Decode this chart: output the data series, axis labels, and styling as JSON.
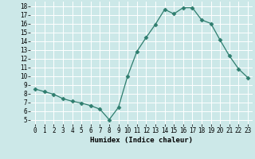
{
  "x": [
    0,
    1,
    2,
    3,
    4,
    5,
    6,
    7,
    8,
    9,
    10,
    11,
    12,
    13,
    14,
    15,
    16,
    17,
    18,
    19,
    20,
    21,
    22,
    23
  ],
  "y": [
    8.5,
    8.2,
    7.9,
    7.4,
    7.1,
    6.9,
    6.6,
    6.2,
    5.0,
    6.4,
    10.0,
    12.8,
    14.4,
    15.9,
    17.6,
    17.1,
    17.8,
    17.8,
    16.4,
    16.0,
    14.1,
    12.3,
    10.8,
    9.8
  ],
  "line_color": "#2e7d6e",
  "marker": "D",
  "marker_size": 2.5,
  "bg_color": "#cce8e8",
  "grid_color": "#ffffff",
  "xlabel": "Humidex (Indice chaleur)",
  "xlim": [
    -0.5,
    23.5
  ],
  "ylim": [
    4.5,
    18.5
  ],
  "yticks": [
    5,
    6,
    7,
    8,
    9,
    10,
    11,
    12,
    13,
    14,
    15,
    16,
    17,
    18
  ],
  "xticks": [
    0,
    1,
    2,
    3,
    4,
    5,
    6,
    7,
    8,
    9,
    10,
    11,
    12,
    13,
    14,
    15,
    16,
    17,
    18,
    19,
    20,
    21,
    22,
    23
  ],
  "tick_fontsize": 5.5,
  "label_fontsize": 6.5
}
